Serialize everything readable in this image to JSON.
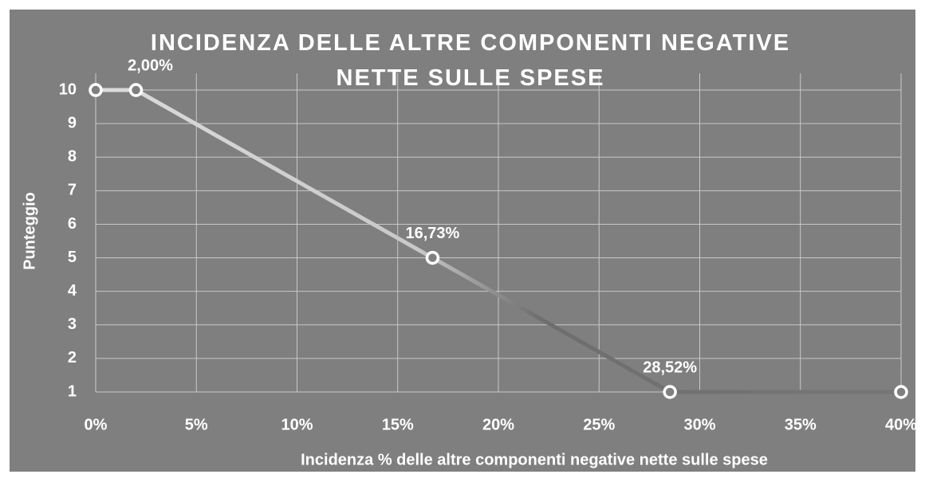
{
  "chart_data": {
    "type": "line",
    "title": "INCIDENZA DELLE ALTRE COMPONENTI NEGATIVE NETTE SULLE SPESE",
    "x_label": "Incidenza % delle altre componenti  negative nette sulle spese",
    "y_label": "Punteggio",
    "x": [
      0,
      2,
      16.73,
      28.52,
      40
    ],
    "values": [
      10,
      10,
      5,
      1,
      1
    ],
    "point_labels": [
      null,
      "2,00%",
      "16,73%",
      "28,52%",
      null
    ],
    "color": "#d9d9d9",
    "xlim": [
      0,
      40
    ],
    "xticks": [
      {
        "value": 0,
        "label": "0%"
      },
      {
        "value": 5,
        "label": "5%"
      },
      {
        "value": 10,
        "label": "10%"
      },
      {
        "value": 15,
        "label": "15%"
      },
      {
        "value": 20,
        "label": "20%"
      },
      {
        "value": 25,
        "label": "25%"
      },
      {
        "value": 30,
        "label": "30%"
      },
      {
        "value": 35,
        "label": "35%"
      },
      {
        "value": 40,
        "label": "40%"
      }
    ],
    "ylim": [
      1,
      10.5
    ],
    "yticks": [
      1,
      2,
      3,
      4,
      5,
      6,
      7,
      8,
      9,
      10
    ],
    "grid": true
  }
}
